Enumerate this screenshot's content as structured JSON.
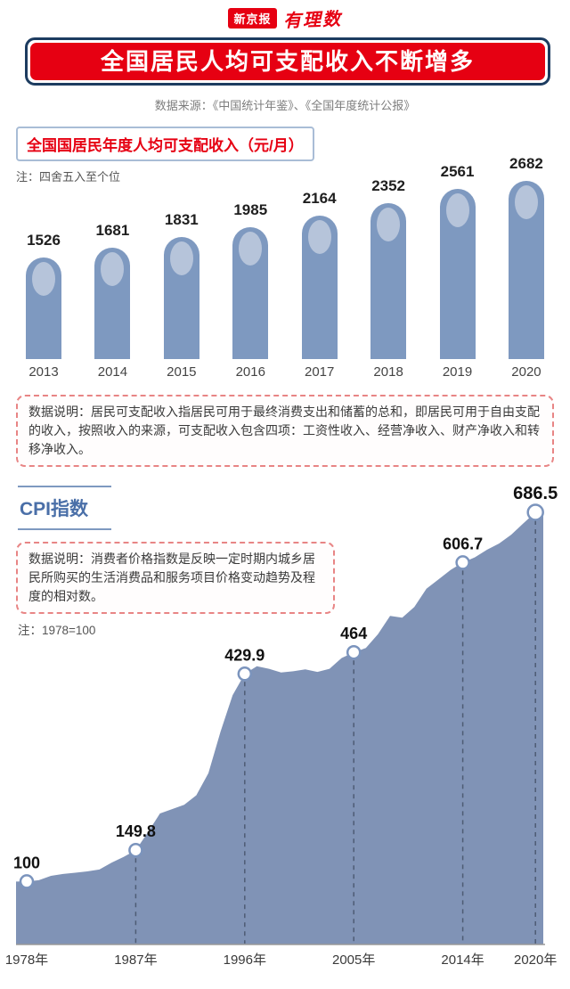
{
  "logo": {
    "name": "新京报",
    "sub": "有理数"
  },
  "banner": {
    "title": "全国居民人均可支配收入不断增多"
  },
  "source": "数据来源：《中国统计年鉴》、《全国年度统计公报》",
  "income_section": {
    "title": "全国国居民年度人均可支配收入（元/月）",
    "note": "注：四舍五入至个位",
    "description": "数据说明：居民可支配收入指居民可用于最终消费支出和储蓄的总和，即居民可用于自由支配的收入，按照收入的来源，可支配收入包含四项：工资性收入、经营净收入、财产净收入和转移净收入。"
  },
  "cpi_section": {
    "title": "CPI指数",
    "description": "数据说明：消费者价格指数是反映一定时期内城乡居民所购买的生活消费品和服务项目价格变动趋势及程度的相对数。",
    "note": "注：1978=100"
  },
  "colors": {
    "accent_red": "#e60012",
    "navy": "#1d3c60",
    "bar_blue": "#7e99c0",
    "bar_cap": "#b6c4da",
    "area_blue": "#8093b6",
    "point_stroke": "#7b94bd",
    "guide_dash": "#4e5c74"
  },
  "chart_data": [
    {
      "type": "bar",
      "title": "全国国居民年度人均可支配收入（元/月）",
      "note": "四舍五入至个位",
      "categories": [
        "2013",
        "2014",
        "2015",
        "2016",
        "2017",
        "2018",
        "2019",
        "2020"
      ],
      "values": [
        1526,
        1681,
        1831,
        1985,
        2164,
        2352,
        2561,
        2682
      ],
      "ylim": [
        0,
        2682
      ],
      "grid": false,
      "value_labels_shown": true
    },
    {
      "type": "area",
      "title": "CPI指数",
      "note": "1978=100",
      "x_tick_labels": [
        "1978年",
        "1987年",
        "1996年",
        "2005年",
        "2014年",
        "2020年"
      ],
      "labeled_points": [
        {
          "year": 1978,
          "value": 100
        },
        {
          "year": 1987,
          "value": 149.8
        },
        {
          "year": 1996,
          "value": 429.9
        },
        {
          "year": 2005,
          "value": 464
        },
        {
          "year": 2014,
          "value": 606.7
        },
        {
          "year": 2020,
          "value": 686.5
        }
      ],
      "series_points": [
        [
          1978,
          100
        ],
        [
          1979,
          102
        ],
        [
          1980,
          109
        ],
        [
          1981,
          112
        ],
        [
          1982,
          114
        ],
        [
          1983,
          116
        ],
        [
          1984,
          119
        ],
        [
          1985,
          130
        ],
        [
          1986,
          139
        ],
        [
          1987,
          149.8
        ],
        [
          1988,
          178
        ],
        [
          1989,
          208
        ],
        [
          1990,
          215
        ],
        [
          1991,
          222
        ],
        [
          1992,
          237
        ],
        [
          1993,
          272
        ],
        [
          1994,
          338
        ],
        [
          1995,
          396
        ],
        [
          1996,
          429.9
        ],
        [
          1997,
          442
        ],
        [
          1998,
          438
        ],
        [
          1999,
          432
        ],
        [
          2000,
          434
        ],
        [
          2001,
          437
        ],
        [
          2002,
          433
        ],
        [
          2003,
          438
        ],
        [
          2004,
          455
        ],
        [
          2005,
          464
        ],
        [
          2006,
          471
        ],
        [
          2007,
          493
        ],
        [
          2008,
          522
        ],
        [
          2009,
          519
        ],
        [
          2010,
          536
        ],
        [
          2011,
          565
        ],
        [
          2012,
          580
        ],
        [
          2013,
          595
        ],
        [
          2014,
          606.7
        ],
        [
          2015,
          615
        ],
        [
          2016,
          627
        ],
        [
          2017,
          637
        ],
        [
          2018,
          651
        ],
        [
          2019,
          669
        ],
        [
          2020,
          686.5
        ]
      ],
      "xlim": [
        1978,
        2020
      ],
      "ylim": [
        0,
        700
      ],
      "grid": false
    }
  ]
}
